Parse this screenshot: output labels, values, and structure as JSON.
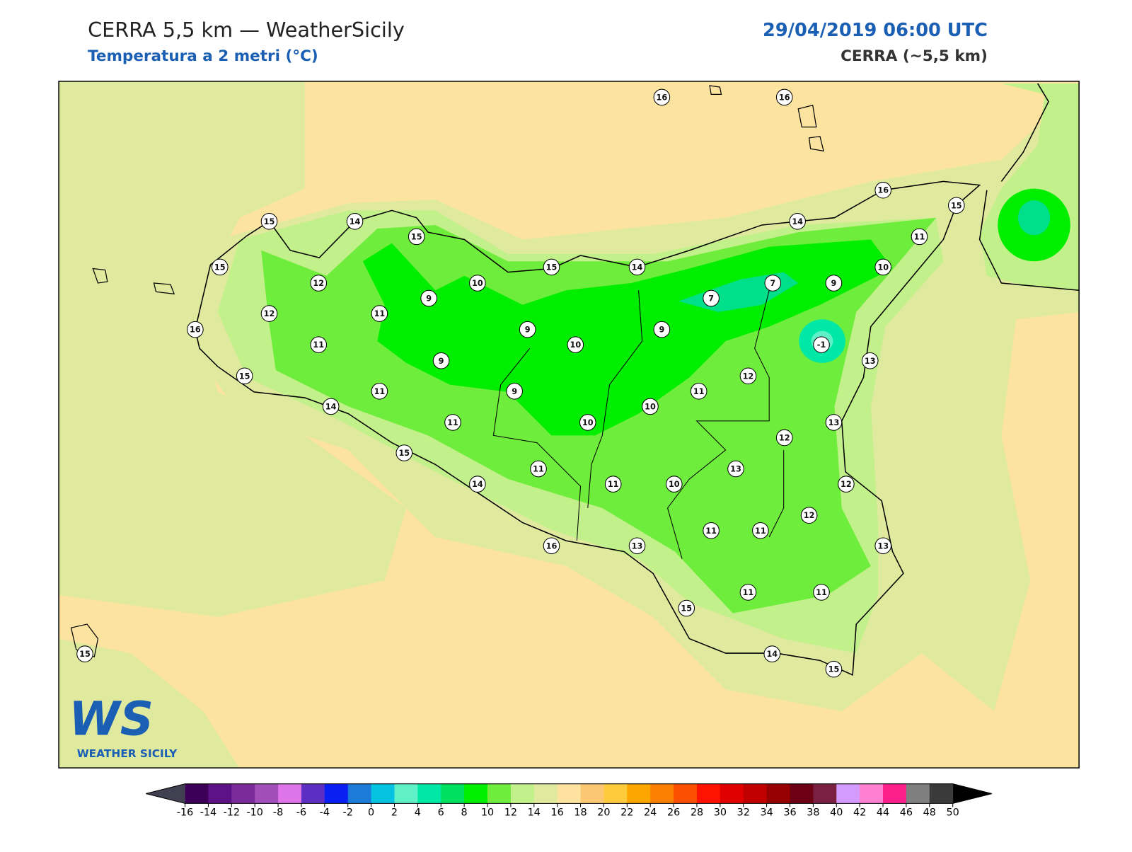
{
  "header": {
    "title": "CERRA 5,5 km — WeatherSicily",
    "subtitle": "Temperatura a 2 metri (°C)",
    "datetime": "29/04/2019 06:00 UTC",
    "model": "CERRA (~5,5 km)"
  },
  "logo": {
    "mark": "WS",
    "name": "WEATHER SICILY"
  },
  "stations": [
    16,
    16,
    16,
    15,
    15,
    14,
    15,
    14,
    11,
    15,
    15,
    14,
    10,
    12,
    10,
    7,
    9,
    9,
    7,
    12,
    11,
    16,
    9,
    9,
    11,
    10,
    -1,
    9,
    13,
    15,
    12,
    11,
    9,
    11,
    14,
    10,
    11,
    10,
    13,
    12,
    15,
    11,
    13,
    14,
    11,
    10,
    12,
    12,
    11,
    11,
    16,
    13,
    13,
    11,
    11,
    15,
    15,
    14,
    15
  ],
  "colorbar": {
    "clim": [
      -16,
      50
    ],
    "ticks": [
      -16,
      -14,
      -12,
      -10,
      -8,
      -6,
      -4,
      -2,
      0,
      2,
      4,
      6,
      8,
      10,
      12,
      14,
      16,
      18,
      20,
      22,
      24,
      26,
      28,
      30,
      32,
      34,
      36,
      38,
      40,
      42,
      44,
      46,
      48,
      50
    ],
    "colors": [
      "#3d0058",
      "#5e1287",
      "#7c2b9b",
      "#a04eb8",
      "#dd74e8",
      "#5e2ec4",
      "#0a1ff2",
      "#1b7bd8",
      "#05c3e0",
      "#5ff0c8",
      "#00e8a5",
      "#00e060",
      "#00ee00",
      "#6fed3c",
      "#c2f08a",
      "#e0ea9e",
      "#fee3a0",
      "#fbc773",
      "#fecb3c",
      "#fea600",
      "#fb7f00",
      "#fb5000",
      "#fe1300",
      "#e00000",
      "#c00000",
      "#960000",
      "#6e0015",
      "#7a2040",
      "#d49bff",
      "#ff7fd0",
      "#ff1f8c",
      "#7f7f7f",
      "#3a3a3a"
    ],
    "under": "#404050",
    "over": "#000000"
  }
}
